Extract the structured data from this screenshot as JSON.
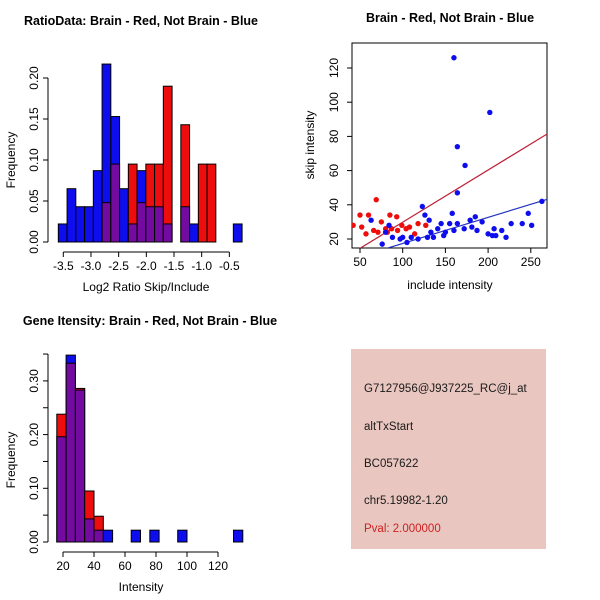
{
  "colors": {
    "red": "#ee0d0d",
    "blue": "#0d0dee",
    "overlap_purple": "#730ba0",
    "red_line": "#be2239",
    "blue_line": "#2433c0",
    "axis_black": "#000000",
    "panel_bg": "#e9c6bf",
    "pval_text": "#cc2222"
  },
  "legend_note": "Brain - Red, Not Brain - Blue",
  "chart_data": [
    {
      "id": "ratio_hist",
      "type": "bar",
      "subtype": "overlaid-histogram",
      "title": "RatioData: Brain - Red, Not Brain - Blue",
      "xlabel": "Log2 Ratio Skip/Include",
      "ylabel": "Frequency",
      "x_ticks": [
        -3.5,
        -3.0,
        -2.5,
        -2.0,
        -1.5,
        -1.0,
        -0.5
      ],
      "y_ticks": [
        0,
        0.05,
        0.1,
        0.15,
        0.2
      ],
      "ylim": [
        0,
        0.22
      ],
      "grid": false,
      "bin_start": -3.59,
      "bin_width": 0.1581,
      "series": [
        {
          "name": "Not Brain",
          "color": "blue",
          "values": [
            0.022,
            0.065,
            0.043,
            0.043,
            0.087,
            0.217,
            0.153,
            0.065,
            0.022,
            0.087,
            0.043,
            0.043,
            0.022,
            0,
            0.043,
            0.022,
            0,
            0,
            0,
            0,
            0.022
          ]
        },
        {
          "name": "Brain",
          "color": "red",
          "values": [
            0,
            0,
            0,
            0,
            0,
            0.048,
            0.095,
            0,
            0.095,
            0.048,
            0.095,
            0.095,
            0.19,
            0,
            0.143,
            0,
            0.095,
            0.095,
            0,
            0,
            0
          ]
        }
      ]
    },
    {
      "id": "scatter",
      "type": "scatter",
      "title": "Brain - Red, Not Brain - Blue",
      "xlabel": "include intensity",
      "ylabel": "skip intensity",
      "x_ticks": [
        50,
        100,
        150,
        200,
        250
      ],
      "y_ticks": [
        20,
        40,
        60,
        80,
        100,
        120
      ],
      "xlim": [
        40,
        271
      ],
      "ylim": [
        13,
        136
      ],
      "grid": false,
      "series": [
        {
          "name": "Brain",
          "color": "red",
          "points": [
            [
              42,
              28
            ],
            [
              50,
              34
            ],
            [
              52,
              27
            ],
            [
              57,
              23
            ],
            [
              60,
              34
            ],
            [
              66,
              25
            ],
            [
              69,
              43
            ],
            [
              71,
              24
            ],
            [
              75,
              30
            ],
            [
              80,
              26
            ],
            [
              82,
              24
            ],
            [
              85,
              34
            ],
            [
              87,
              26
            ],
            [
              93,
              33
            ],
            [
              94,
              25
            ],
            [
              99,
              28
            ],
            [
              104,
              26
            ],
            [
              108,
              27
            ],
            [
              114,
              23
            ],
            [
              118,
              29
            ],
            [
              127,
              28
            ]
          ]
        },
        {
          "name": "Not Brain",
          "color": "blue",
          "points": [
            [
              63,
              31
            ],
            [
              76,
              17
            ],
            [
              80,
              24
            ],
            [
              84,
              28
            ],
            [
              88,
              21
            ],
            [
              97,
              20
            ],
            [
              100,
              21
            ],
            [
              105,
              18
            ],
            [
              110,
              21
            ],
            [
              118,
              20
            ],
            [
              123,
              39
            ],
            [
              126,
              34
            ],
            [
              129,
              21
            ],
            [
              131,
              31
            ],
            [
              133,
              24
            ],
            [
              136,
              21
            ],
            [
              141,
              26
            ],
            [
              145,
              29
            ],
            [
              148,
              22
            ],
            [
              150,
              24
            ],
            [
              155,
              29
            ],
            [
              158,
              35
            ],
            [
              160,
              25
            ],
            [
              164,
              29
            ],
            [
              164,
              47
            ],
            [
              172,
              26
            ],
            [
              173,
              63
            ],
            [
              179,
              31
            ],
            [
              181,
              27
            ],
            [
              185,
              33
            ],
            [
              187,
              25
            ],
            [
              193,
              30
            ],
            [
              200,
              23
            ],
            [
              205,
              22
            ],
            [
              207,
              26
            ],
            [
              209,
              22
            ],
            [
              216,
              25
            ],
            [
              221,
              21
            ],
            [
              227,
              29
            ],
            [
              240,
              29
            ],
            [
              247,
              35
            ],
            [
              251,
              28
            ],
            [
              263,
              42
            ],
            [
              160,
              126
            ],
            [
              202,
              94
            ],
            [
              164,
              74
            ]
          ]
        }
      ],
      "fit_lines": [
        {
          "name": "brain-fit",
          "color": "red_line",
          "x1": 40,
          "y1": 11.5,
          "x2": 271,
          "y2": 82
        },
        {
          "name": "not-brain-fit",
          "color": "blue_line",
          "x1": 68,
          "y1": 12.5,
          "x2": 271,
          "y2": 43.5
        }
      ]
    },
    {
      "id": "gene_hist",
      "type": "bar",
      "subtype": "overlaid-histogram",
      "title": "Gene Itensity: Brain - Red, Not Brain - Blue",
      "xlabel": "Intensity",
      "ylabel": "Frequency",
      "x_ticks": [
        20,
        40,
        60,
        80,
        100,
        120
      ],
      "y_ticks": [
        0,
        0.05,
        0.1,
        0.15,
        0.2,
        0.25,
        0.3,
        0.35
      ],
      "y_labeled_ticks": [
        0,
        0.1,
        0.2,
        0.3
      ],
      "ylim": [
        0,
        0.36
      ],
      "grid": false,
      "bin_start": 16,
      "bin_width": 6,
      "series": [
        {
          "name": "Not Brain",
          "color": "blue",
          "values": [
            0.196,
            0.348,
            0.283,
            0.043,
            0.022,
            0.022,
            0,
            0,
            0.022,
            0,
            0.022,
            0,
            0,
            0.022,
            0,
            0,
            0,
            0,
            0,
            0.022
          ]
        },
        {
          "name": "Brain",
          "color": "red",
          "values": [
            0.238,
            0.333,
            0.286,
            0.095,
            0.048,
            0,
            0,
            0,
            0,
            0,
            0,
            0,
            0,
            0,
            0,
            0,
            0,
            0,
            0,
            0
          ]
        }
      ]
    }
  ],
  "info_panel": {
    "probe_id": "G7127956@J937225_RC@j_at",
    "event_type": "altTxStart",
    "accession": "BC057622",
    "locus": "chr5.19982-1.20",
    "pval": "Pval: 2.000000"
  }
}
